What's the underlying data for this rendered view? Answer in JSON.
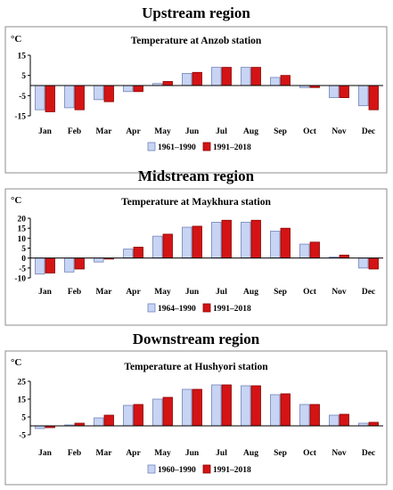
{
  "colors": {
    "series1": "#c8d4f4",
    "series1_stroke": "#6f83b8",
    "series2": "#d41414",
    "series2_stroke": "#8a0000",
    "axis": "#000000"
  },
  "chart_data": [
    {
      "type": "bar",
      "region_title": "Upstream region",
      "title": "Temperature at Anzob station",
      "ylabel": "°C",
      "ylim": [
        -15,
        15
      ],
      "yticks": [
        -15,
        -5,
        5,
        15
      ],
      "grid": false,
      "legend": "bottom",
      "categories": [
        "Jan",
        "Feb",
        "Mar",
        "Apr",
        "May",
        "Jun",
        "Jul",
        "Aug",
        "Sep",
        "Oct",
        "Nov",
        "Dec"
      ],
      "series": [
        {
          "name": "1961–1990",
          "values": [
            -12,
            -11,
            -7,
            -3,
            1,
            6,
            9,
            9,
            4,
            -1,
            -6,
            -10
          ]
        },
        {
          "name": "1991–2018",
          "values": [
            -13,
            -12,
            -8,
            -3,
            2,
            6.5,
            9,
            9,
            5,
            -1,
            -6,
            -12
          ]
        }
      ]
    },
    {
      "type": "bar",
      "region_title": "Midstream region",
      "title": "Temperature at Maykhura station",
      "ylabel": "°C",
      "ylim": [
        -10,
        20
      ],
      "yticks": [
        -10,
        -5,
        0,
        5,
        10,
        15,
        20
      ],
      "grid": false,
      "legend": "bottom",
      "categories": [
        "Jan",
        "Feb",
        "Mar",
        "Apr",
        "May",
        "Jun",
        "Jul",
        "Aug",
        "Sep",
        "Oct",
        "Nov",
        "Dec"
      ],
      "series": [
        {
          "name": "1964–1990",
          "values": [
            -8,
            -7,
            -2,
            4.5,
            11,
            15.5,
            18,
            18,
            13.5,
            7,
            0.5,
            -5
          ]
        },
        {
          "name": "1991–2018",
          "values": [
            -7.5,
            -5.5,
            -0.5,
            5.5,
            12,
            16,
            19,
            19,
            15,
            8,
            1.5,
            -5.5
          ]
        }
      ]
    },
    {
      "type": "bar",
      "region_title": "Downstream region",
      "title": "Temperature at Hushyori station",
      "ylabel": "°C",
      "ylim": [
        -5,
        25
      ],
      "yticks": [
        -5,
        5,
        15,
        25
      ],
      "grid": false,
      "legend": "bottom",
      "categories": [
        "Jan",
        "Feb",
        "Mar",
        "Apr",
        "May",
        "Jun",
        "Jul",
        "Aug",
        "Sep",
        "Oct",
        "Nov",
        "Dec"
      ],
      "series": [
        {
          "name": "1960–1990",
          "values": [
            -1.5,
            0.5,
            4.5,
            11.5,
            15,
            20.5,
            23,
            22.5,
            17.5,
            12,
            6,
            1.5
          ]
        },
        {
          "name": "1991–2018",
          "values": [
            -1,
            1.5,
            6,
            12,
            16,
            20.5,
            23,
            22.5,
            18,
            12,
            6.5,
            2
          ]
        }
      ]
    }
  ]
}
